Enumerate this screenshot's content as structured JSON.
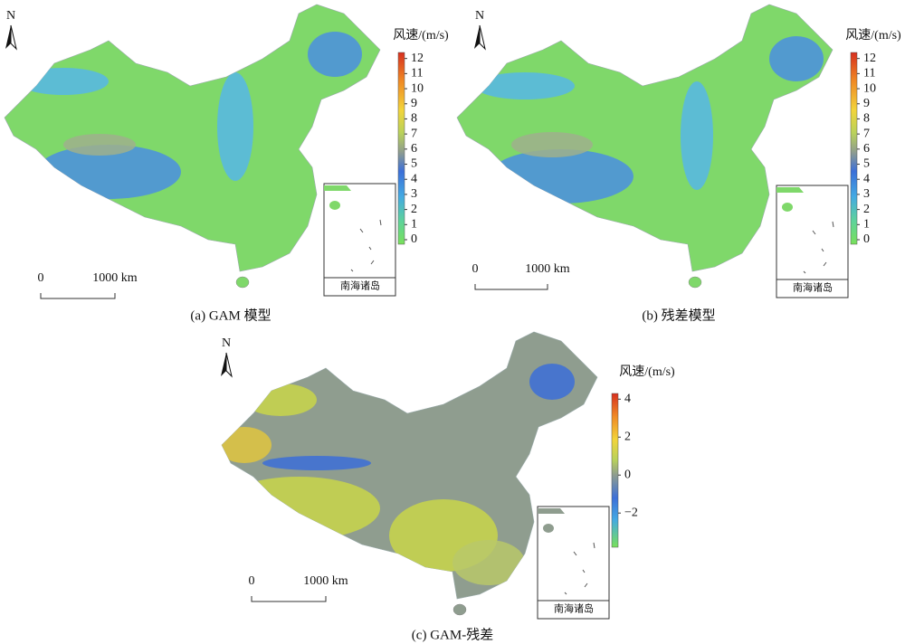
{
  "panels": [
    {
      "caption": "(a) GAM 模型",
      "north": "N",
      "legend": {
        "title": "风速/(m/s)",
        "lim": [
          -0.3,
          12.4
        ],
        "ticks": [
          0,
          1,
          2,
          3,
          4,
          5,
          6,
          7,
          8,
          9,
          10,
          11,
          12
        ]
      },
      "scale_bar": {
        "start": "0",
        "end": "1000 km"
      },
      "inset_label": "南海诸岛"
    },
    {
      "caption": "(b) 残差模型",
      "north": "N",
      "legend": {
        "title": "风速/(m/s)",
        "lim": [
          -0.3,
          12.4
        ],
        "ticks": [
          0,
          1,
          2,
          3,
          4,
          5,
          6,
          7,
          8,
          9,
          10,
          11,
          12
        ]
      },
      "scale_bar": {
        "start": "0",
        "end": "1000 km"
      },
      "inset_label": "南海诸岛"
    },
    {
      "caption": "(c) GAM-残差",
      "north": "N",
      "legend": {
        "title": "风速/(m/s)",
        "lim": [
          -3.8,
          4.3
        ],
        "ticks": [
          4,
          2,
          0,
          {
            "value": -2,
            "label": "−2"
          }
        ]
      },
      "scale_bar": {
        "start": "0",
        "end": "1000 km"
      },
      "inset_label": "南海诸岛"
    }
  ]
}
